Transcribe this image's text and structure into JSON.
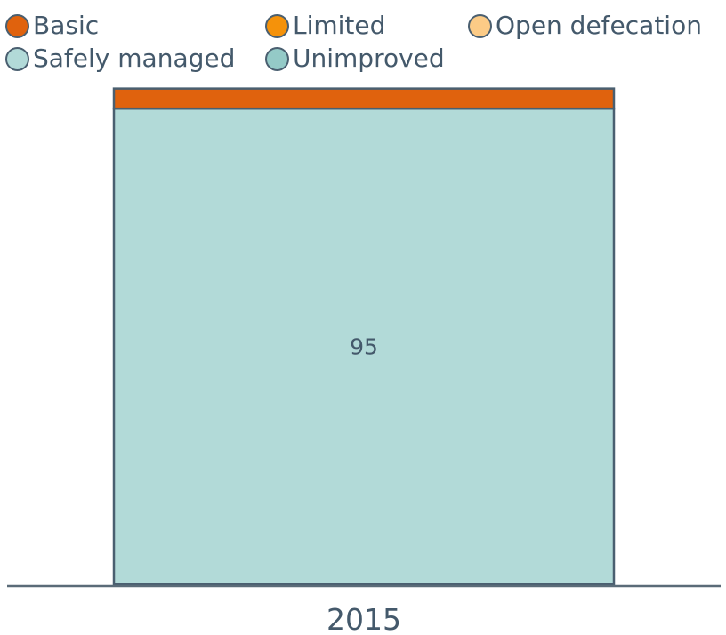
{
  "chart_data": {
    "type": "bar",
    "stacked": true,
    "categories": [
      "2015"
    ],
    "series": [
      {
        "name": "Safely managed",
        "values": [
          95
        ],
        "color": "#b2dad8",
        "show_label": true
      },
      {
        "name": "Basic",
        "values": [
          4
        ],
        "color": "#e0620d",
        "show_label": false
      }
    ],
    "legend": {
      "placement": "top",
      "items": [
        {
          "name": "Basic",
          "color": "#e0620d"
        },
        {
          "name": "Limited",
          "color": "#f5920a"
        },
        {
          "name": "Open defecation",
          "color": "#fccb86"
        },
        {
          "name": "Safely managed",
          "color": "#b2dad8"
        },
        {
          "name": "Unimproved",
          "color": "#94cac7"
        }
      ]
    },
    "ylim": [
      0,
      100
    ],
    "grid": false,
    "title": "",
    "xlabel": "",
    "ylabel": ""
  },
  "colors": {
    "text": "#44596b",
    "outline": "#4a5f70",
    "axis": "#5a6b78"
  }
}
